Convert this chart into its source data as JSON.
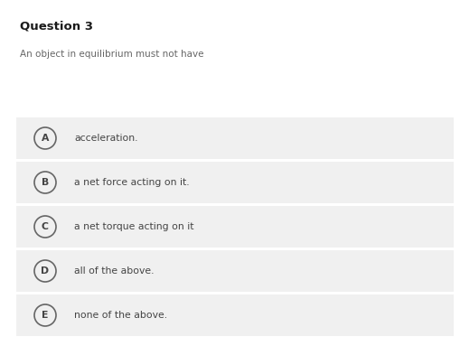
{
  "title": "Question 3",
  "question": "An object in equilibrium must not have",
  "options": [
    {
      "letter": "A",
      "text": "acceleration."
    },
    {
      "letter": "B",
      "text": "a net force acting on it."
    },
    {
      "letter": "C",
      "text": "a net torque acting on it"
    },
    {
      "letter": "D",
      "text": "all of the above."
    },
    {
      "letter": "E",
      "text": "none of the above."
    }
  ],
  "bg_color": "#ffffff",
  "option_bg_color": "#f0f0f0",
  "title_color": "#1a1a1a",
  "question_color": "#666666",
  "option_text_color": "#444444",
  "circle_edge_color": "#666666",
  "circle_face_color": "#f0f0f0",
  "title_fontsize": 9.5,
  "question_fontsize": 7.5,
  "option_fontsize": 7.8,
  "letter_fontsize": 7.8,
  "fig_width": 5.1,
  "fig_height": 3.93,
  "dpi": 100
}
